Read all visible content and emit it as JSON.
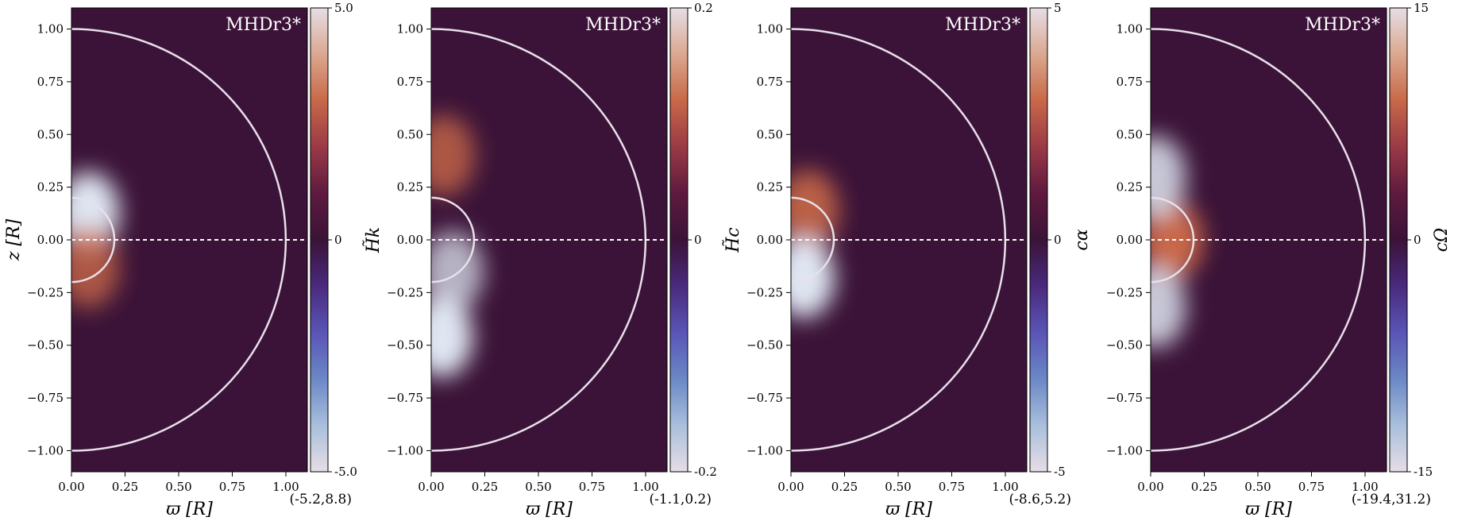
{
  "colors": {
    "background": "#3b1338",
    "contour_line": "#e8e0ea",
    "colormap": [
      "#e6dde6",
      "#a9bfdc",
      "#6b88c6",
      "#5a55b6",
      "#4a2a7e",
      "#3b1338",
      "#5e1a3e",
      "#9a3a46",
      "#c86848",
      "#dba890",
      "#e6dde6"
    ]
  },
  "chart_data": [
    {
      "type": "heatmap",
      "label": "MHDr3*",
      "xlabel": "ϖ [R]",
      "ylabel": "z [R]",
      "colorbar_label": "",
      "range_text": "(-5.2,8.8)",
      "xlim": [
        0.0,
        1.1
      ],
      "ylim": [
        -1.1,
        1.1
      ],
      "xticks": [
        "0.00",
        "0.25",
        "0.50",
        "0.75",
        "1.00"
      ],
      "yticks": [
        "1.00",
        "0.75",
        "0.50",
        "0.25",
        "0.00",
        "−0.25",
        "−0.50",
        "−0.75",
        "−1.00"
      ],
      "colorbar_ticks": [
        "5.0",
        "0",
        "-5.0"
      ],
      "colorbar_range": [
        -5.0,
        5.0
      ],
      "features": [
        {
          "x": 0.08,
          "z": 0.13,
          "sign": -1,
          "amp": 1.0
        },
        {
          "x": 0.08,
          "z": -0.13,
          "sign": 1,
          "amp": 0.6
        }
      ]
    },
    {
      "type": "heatmap",
      "label": "MHDr3*",
      "xlabel": "ϖ [R]",
      "ylabel": "H̃k",
      "colorbar_label": "",
      "range_text": "(-1.1,0.2)",
      "xlim": [
        0.0,
        1.1
      ],
      "ylim": [
        -1.1,
        1.1
      ],
      "xticks": [
        "0.00",
        "0.25",
        "0.50",
        "0.75",
        "1.00"
      ],
      "yticks": [
        "1.00",
        "0.75",
        "0.50",
        "0.25",
        "0.00",
        "−0.25",
        "−0.50",
        "−0.75",
        "−1.00"
      ],
      "colorbar_ticks": [
        "0.2",
        "0",
        "-0.2"
      ],
      "colorbar_range": [
        -0.2,
        0.2
      ],
      "features": [
        {
          "x": 0.06,
          "z": 0.4,
          "sign": 1,
          "amp": 0.6
        },
        {
          "x": 0.05,
          "z": -0.46,
          "sign": -1,
          "amp": 1.0
        },
        {
          "x": 0.1,
          "z": -0.15,
          "sign": -1,
          "amp": 0.5
        }
      ]
    },
    {
      "type": "heatmap",
      "label": "MHDr3*",
      "xlabel": "ϖ [R]",
      "ylabel": "H̃c",
      "colorbar_label": "cα",
      "range_text": "(-8.6,5.2)",
      "xlim": [
        0.0,
        1.1
      ],
      "ylim": [
        -1.1,
        1.1
      ],
      "xticks": [
        "0.00",
        "0.25",
        "0.50",
        "0.75",
        "1.00"
      ],
      "yticks": [
        "1.00",
        "0.75",
        "0.50",
        "0.25",
        "0.00",
        "−0.25",
        "−0.50",
        "−0.75",
        "−1.00"
      ],
      "colorbar_ticks": [
        "5",
        "0",
        "-5"
      ],
      "colorbar_range": [
        -5,
        5
      ],
      "features": [
        {
          "x": 0.08,
          "z": 0.14,
          "sign": 1,
          "amp": 0.8
        },
        {
          "x": 0.06,
          "z": -0.18,
          "sign": -1,
          "amp": 1.0
        }
      ]
    },
    {
      "type": "heatmap",
      "label": "MHDr3*",
      "xlabel": "ϖ [R]",
      "ylabel": "",
      "colorbar_label": "cΩ",
      "range_text": "(-19.4,31.2)",
      "xlim": [
        0.0,
        1.1
      ],
      "ylim": [
        -1.1,
        1.1
      ],
      "xticks": [
        "0.00",
        "0.25",
        "0.50",
        "0.75",
        "1.00"
      ],
      "yticks": [
        "1.00",
        "0.75",
        "0.50",
        "0.25",
        "0.00",
        "−0.25",
        "−0.50",
        "−0.75",
        "−1.00"
      ],
      "colorbar_ticks": [
        "15",
        "0",
        "-15"
      ],
      "colorbar_range": [
        -15,
        15
      ],
      "features": [
        {
          "x": 0.1,
          "z": 0.0,
          "sign": 1,
          "amp": 1.0
        },
        {
          "x": 0.02,
          "z": 0.3,
          "sign": -1,
          "amp": 0.7
        },
        {
          "x": 0.02,
          "z": -0.32,
          "sign": -1,
          "amp": 0.7
        }
      ]
    }
  ]
}
